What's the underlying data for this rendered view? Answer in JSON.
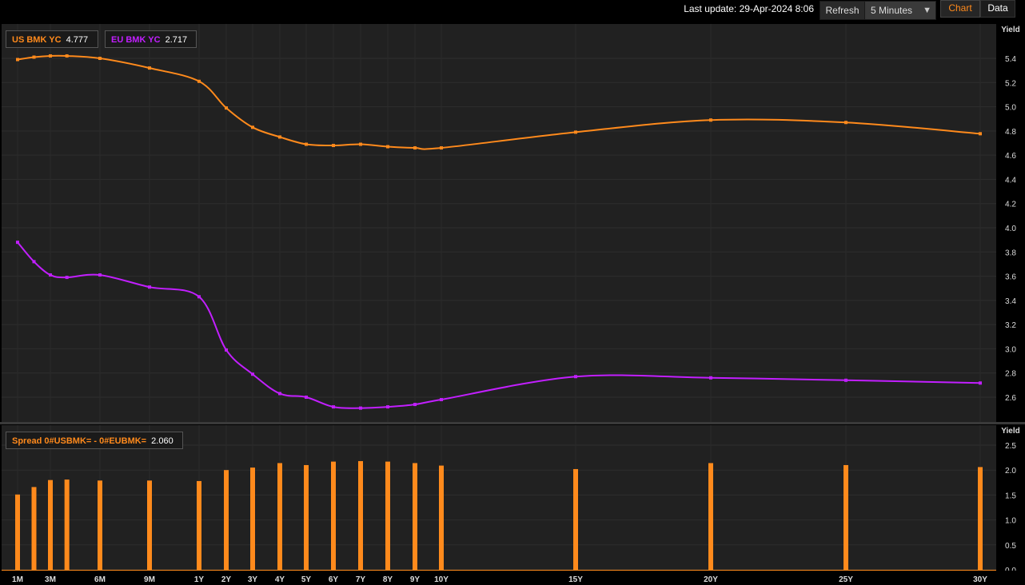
{
  "toolbar": {
    "last_update": "Last update: 29-Apr-2024 8:06",
    "refresh_label": "Refresh",
    "interval_value": "5 Minutes",
    "tab_chart": "Chart",
    "tab_data": "Data"
  },
  "colors": {
    "us": "#ff8a1c",
    "eu": "#c21fff",
    "spread": "#ff8a1c",
    "background": "#212121"
  },
  "chart_data": [
    {
      "type": "line",
      "ylabel": "Yield",
      "ylim": [
        2.4,
        5.55
      ],
      "yticks": [
        2.6,
        2.8,
        3.0,
        3.2,
        3.4,
        3.6,
        3.8,
        4.0,
        4.2,
        4.4,
        4.6,
        4.8,
        5.0,
        5.2,
        5.4
      ],
      "legend_position": "top-left",
      "grid": true,
      "series": [
        {
          "name": "US BMK YC",
          "last_value": "4.777",
          "color": "#ff8a1c",
          "points": [
            [
              1,
              5.39
            ],
            [
              2,
              5.41
            ],
            [
              3,
              5.42
            ],
            [
              4,
              5.42
            ],
            [
              6,
              5.4
            ],
            [
              9,
              5.32
            ],
            [
              12,
              5.21
            ],
            [
              24,
              4.99
            ],
            [
              36,
              4.83
            ],
            [
              48,
              4.75
            ],
            [
              60,
              4.69
            ],
            [
              72,
              4.68
            ],
            [
              84,
              4.69
            ],
            [
              96,
              4.67
            ],
            [
              108,
              4.66
            ],
            [
              120,
              4.66
            ],
            [
              180,
              4.79
            ],
            [
              240,
              4.89
            ],
            [
              300,
              4.87
            ],
            [
              360,
              4.777
            ]
          ]
        },
        {
          "name": "EU BMK YC",
          "last_value": "2.717",
          "color": "#c21fff",
          "points": [
            [
              1,
              3.88
            ],
            [
              2,
              3.72
            ],
            [
              3,
              3.61
            ],
            [
              4,
              3.59
            ],
            [
              6,
              3.61
            ],
            [
              9,
              3.51
            ],
            [
              12,
              3.43
            ],
            [
              24,
              2.99
            ],
            [
              36,
              2.79
            ],
            [
              48,
              2.63
            ],
            [
              60,
              2.6
            ],
            [
              72,
              2.52
            ],
            [
              84,
              2.51
            ],
            [
              96,
              2.52
            ],
            [
              108,
              2.54
            ],
            [
              120,
              2.58
            ],
            [
              180,
              2.77
            ],
            [
              240,
              2.76
            ],
            [
              300,
              2.74
            ],
            [
              360,
              2.717
            ]
          ]
        }
      ]
    },
    {
      "type": "bar",
      "ylabel": "Yield",
      "ylim": [
        0,
        2.6
      ],
      "yticks": [
        0.0,
        0.5,
        1.0,
        1.5,
        2.0,
        2.5
      ],
      "legend_position": "top-left",
      "grid": true,
      "series": [
        {
          "name": "Spread 0#USBMK= - 0#EUBMK=",
          "last_value": "2.060",
          "color": "#ff8a1c",
          "points": [
            [
              1,
              1.51
            ],
            [
              2,
              1.66
            ],
            [
              3,
              1.8
            ],
            [
              4,
              1.81
            ],
            [
              6,
              1.79
            ],
            [
              9,
              1.79
            ],
            [
              12,
              1.78
            ],
            [
              24,
              2.0
            ],
            [
              36,
              2.05
            ],
            [
              48,
              2.14
            ],
            [
              60,
              2.1
            ],
            [
              72,
              2.17
            ],
            [
              84,
              2.18
            ],
            [
              96,
              2.17
            ],
            [
              108,
              2.14
            ],
            [
              120,
              2.09
            ],
            [
              180,
              2.02
            ],
            [
              240,
              2.14
            ],
            [
              300,
              2.1
            ],
            [
              360,
              2.06
            ]
          ]
        }
      ]
    }
  ],
  "x_axis": {
    "ticks": [
      {
        "m": 1,
        "label": "1M"
      },
      {
        "m": 3,
        "label": "3M"
      },
      {
        "m": 6,
        "label": "6M"
      },
      {
        "m": 9,
        "label": "9M"
      },
      {
        "m": 12,
        "label": "1Y"
      },
      {
        "m": 24,
        "label": "2Y"
      },
      {
        "m": 36,
        "label": "3Y"
      },
      {
        "m": 48,
        "label": "4Y"
      },
      {
        "m": 60,
        "label": "5Y"
      },
      {
        "m": 72,
        "label": "6Y"
      },
      {
        "m": 84,
        "label": "7Y"
      },
      {
        "m": 96,
        "label": "8Y"
      },
      {
        "m": 108,
        "label": "9Y"
      },
      {
        "m": 120,
        "label": "10Y"
      },
      {
        "m": 180,
        "label": "15Y"
      },
      {
        "m": 240,
        "label": "20Y"
      },
      {
        "m": 300,
        "label": "25Y"
      },
      {
        "m": 360,
        "label": "30Y"
      }
    ]
  }
}
